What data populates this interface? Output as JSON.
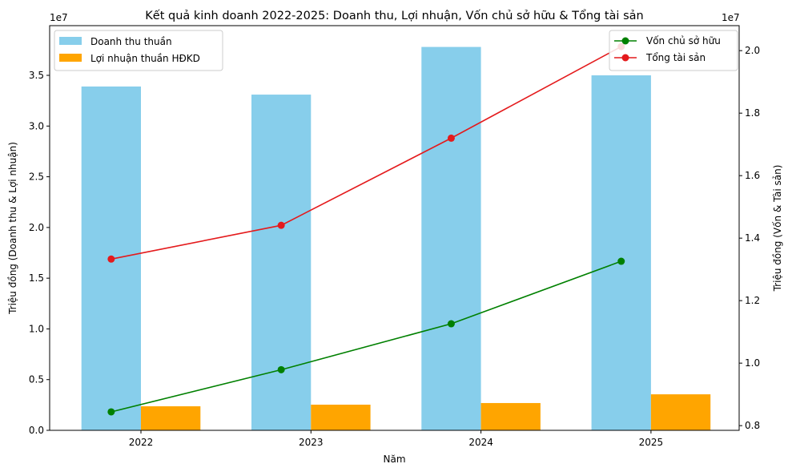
{
  "chart_data": {
    "type": "bar",
    "title": "Kết quả kinh doanh 2022-2025: Doanh thu, Lợi nhuận, Vốn chủ sở hữu & Tổng tài sản",
    "xlabel": "Năm",
    "ylabel": "Triệu đồng (Doanh thu & Lợi nhuận)",
    "y2label": "Triệu đồng (Vốn & Tài sản)",
    "y_offset_label": "1e7",
    "y2_offset_label": "1e7",
    "categories": [
      "2022",
      "2023",
      "2024",
      "2025"
    ],
    "ylim": [
      0,
      39900000
    ],
    "y2lim": [
      7850000,
      20800000
    ],
    "yticks": [
      "0.0",
      "0.5",
      "1.0",
      "1.5",
      "2.0",
      "2.5",
      "3.0",
      "3.5"
    ],
    "y2ticks": [
      "0.8",
      "1.0",
      "1.2",
      "1.4",
      "1.6",
      "1.8",
      "2.0"
    ],
    "grid": false,
    "bar_series": [
      {
        "name": "Doanh thu thuần",
        "color": "#87ceeb",
        "values": [
          33900000,
          33100000,
          37800000,
          35000000
        ]
      },
      {
        "name": "Lợi nhuận thuần HĐKD",
        "color": "#ffa500",
        "values": [
          2370000,
          2530000,
          2690000,
          3550000
        ]
      }
    ],
    "line_series": [
      {
        "name": "Vốn chủ sở hữu",
        "color": "#008000",
        "values": [
          8440000,
          9790000,
          11260000,
          13260000
        ]
      },
      {
        "name": "Tổng tài sản",
        "color": "#e41a1c",
        "values": [
          13330000,
          14410000,
          17200000,
          20130000
        ]
      }
    ],
    "legend_left": "top-left",
    "legend_right": "top-right"
  }
}
